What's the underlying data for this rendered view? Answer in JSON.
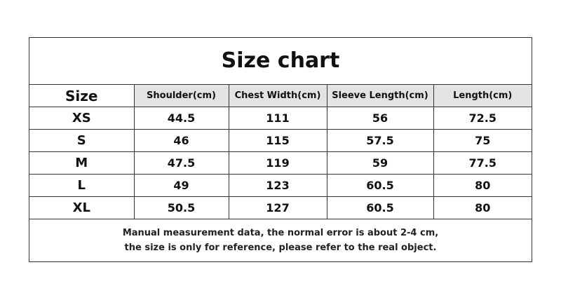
{
  "title": "Size chart",
  "table": {
    "header": [
      "Size",
      "Shoulder(cm)",
      "Chest Width(cm)",
      "Sleeve Length(cm)",
      "Length(cm)"
    ],
    "rows": [
      [
        "XS",
        "44.5",
        "111",
        "56",
        "72.5"
      ],
      [
        "S",
        "46",
        "115",
        "57.5",
        "75"
      ],
      [
        "M",
        "47.5",
        "119",
        "59",
        "77.5"
      ],
      [
        "L",
        "49",
        "123",
        "60.5",
        "80"
      ],
      [
        "XL",
        "50.5",
        "127",
        "60.5",
        "80"
      ]
    ]
  },
  "note": [
    "Manual measurement data, the normal error is about 2-4 cm,",
    "the size is only for reference, please refer to the real object."
  ]
}
